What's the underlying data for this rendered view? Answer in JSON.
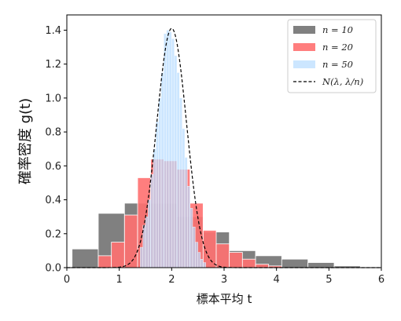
{
  "chart_data": {
    "type": "histogram",
    "xlabel": "標本平均 t",
    "ylabel": "確率密度 g(t)",
    "xlim": [
      0,
      6
    ],
    "ylim": [
      0,
      1.49
    ],
    "xticks": [
      "0",
      "1",
      "2",
      "3",
      "4",
      "5",
      "6"
    ],
    "yticks": [
      "0.0",
      "0.2",
      "0.4",
      "0.6",
      "0.8",
      "1.0",
      "1.2",
      "1.4"
    ],
    "grid": false,
    "legend_position": "top-right",
    "series": [
      {
        "name": "n = 10",
        "color": "#808080",
        "bin_width": 0.5,
        "bins": [
          {
            "x0": 0.1,
            "density": 0.11
          },
          {
            "x0": 0.6,
            "density": 0.32
          },
          {
            "x0": 1.1,
            "density": 0.38
          },
          {
            "x0": 1.6,
            "density": 0.38
          },
          {
            "x0": 2.1,
            "density": 0.3
          },
          {
            "x0": 2.6,
            "density": 0.21
          },
          {
            "x0": 3.1,
            "density": 0.1
          },
          {
            "x0": 3.6,
            "density": 0.07
          },
          {
            "x0": 4.1,
            "density": 0.05
          },
          {
            "x0": 4.6,
            "density": 0.03
          },
          {
            "x0": 5.1,
            "density": 0.01
          }
        ]
      },
      {
        "name": "n = 20",
        "color": "#ff7070",
        "bin_width": 0.25,
        "bins": [
          {
            "x0": 0.6,
            "density": 0.07
          },
          {
            "x0": 0.85,
            "density": 0.15
          },
          {
            "x0": 1.1,
            "density": 0.31
          },
          {
            "x0": 1.35,
            "density": 0.53
          },
          {
            "x0": 1.6,
            "density": 0.64
          },
          {
            "x0": 1.85,
            "density": 0.63
          },
          {
            "x0": 2.1,
            "density": 0.58
          },
          {
            "x0": 2.35,
            "density": 0.38
          },
          {
            "x0": 2.6,
            "density": 0.22
          },
          {
            "x0": 2.85,
            "density": 0.14
          },
          {
            "x0": 3.1,
            "density": 0.09
          },
          {
            "x0": 3.35,
            "density": 0.05
          },
          {
            "x0": 3.6,
            "density": 0.02
          },
          {
            "x0": 3.85,
            "density": 0.01
          }
        ]
      },
      {
        "name": "n = 50",
        "color": "#b8dcff",
        "bin_width": 0.05,
        "bins": [
          {
            "x0": 1.4,
            "density": 0.12
          },
          {
            "x0": 1.45,
            "density": 0.25
          },
          {
            "x0": 1.5,
            "density": 0.3
          },
          {
            "x0": 1.55,
            "density": 0.4
          },
          {
            "x0": 1.6,
            "density": 0.55
          },
          {
            "x0": 1.65,
            "density": 0.7
          },
          {
            "x0": 1.7,
            "density": 0.86
          },
          {
            "x0": 1.75,
            "density": 1.0
          },
          {
            "x0": 1.8,
            "density": 1.15
          },
          {
            "x0": 1.85,
            "density": 1.38
          },
          {
            "x0": 1.9,
            "density": 1.4
          },
          {
            "x0": 1.95,
            "density": 1.39
          },
          {
            "x0": 2.0,
            "density": 1.35
          },
          {
            "x0": 2.05,
            "density": 1.25
          },
          {
            "x0": 2.1,
            "density": 1.15
          },
          {
            "x0": 2.15,
            "density": 1.0
          },
          {
            "x0": 2.2,
            "density": 0.82
          },
          {
            "x0": 2.25,
            "density": 0.65
          },
          {
            "x0": 2.3,
            "density": 0.48
          },
          {
            "x0": 2.35,
            "density": 0.35
          },
          {
            "x0": 2.4,
            "density": 0.24
          },
          {
            "x0": 2.45,
            "density": 0.15
          },
          {
            "x0": 2.5,
            "density": 0.09
          },
          {
            "x0": 2.55,
            "density": 0.05
          },
          {
            "x0": 2.6,
            "density": 0.03
          }
        ]
      },
      {
        "name": "N(λ, λ/n)",
        "type": "line",
        "style": "dashed",
        "color": "#000000",
        "mean": 2.0,
        "variance": 0.08
      }
    ]
  }
}
